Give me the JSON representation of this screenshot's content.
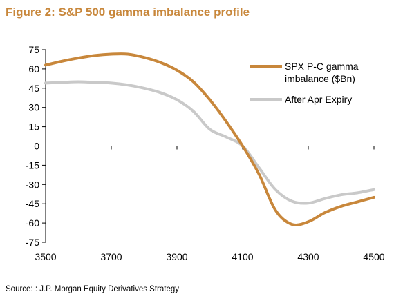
{
  "figure": {
    "title": "Figure 2: S&P 500 gamma imbalance profile",
    "source": "Source: : J.P. Morgan Equity Derivatives Strategy"
  },
  "chart_data": {
    "type": "line",
    "title": "Figure 2: S&P 500 gamma imbalance profile",
    "xlabel": "",
    "ylabel": "",
    "xlim": [
      3500,
      4500
    ],
    "ylim": [
      -75,
      75
    ],
    "xticks": [
      3500,
      3700,
      3900,
      4100,
      4300,
      4500
    ],
    "yticks": [
      75,
      60,
      45,
      30,
      15,
      0,
      -15,
      -30,
      -45,
      -60,
      -75
    ],
    "grid": false,
    "legend_position": "top-right",
    "series": [
      {
        "name": "SPX P-C gamma imbalance ($Bn)",
        "legend_lines": [
          "SPX P-C gamma",
          "imbalance ($Bn)"
        ],
        "color": "#c8873b",
        "x": [
          3500,
          3550,
          3600,
          3650,
          3700,
          3750,
          3800,
          3850,
          3900,
          3950,
          4000,
          4050,
          4100,
          4150,
          4200,
          4250,
          4300,
          4350,
          4400,
          4450,
          4500
        ],
        "y": [
          63,
          66,
          68.5,
          70.5,
          71.5,
          71.5,
          69,
          65,
          59,
          50,
          36,
          19,
          0,
          -22,
          -50,
          -61,
          -59,
          -52,
          -47,
          -43.5,
          -40
        ]
      },
      {
        "name": "After Apr Expiry",
        "legend_lines": [
          "After Apr Expiry"
        ],
        "color": "#c9c9c9",
        "x": [
          3500,
          3550,
          3600,
          3650,
          3700,
          3750,
          3800,
          3850,
          3900,
          3950,
          4000,
          4050,
          4100,
          4150,
          4200,
          4250,
          4300,
          4350,
          4400,
          4450,
          4500
        ],
        "y": [
          49,
          49.5,
          50,
          49.5,
          49,
          47.5,
          45,
          41.5,
          36,
          27,
          13,
          7,
          0,
          -17,
          -34,
          -43,
          -44.5,
          -41,
          -38,
          -36.5,
          -34
        ]
      }
    ]
  }
}
